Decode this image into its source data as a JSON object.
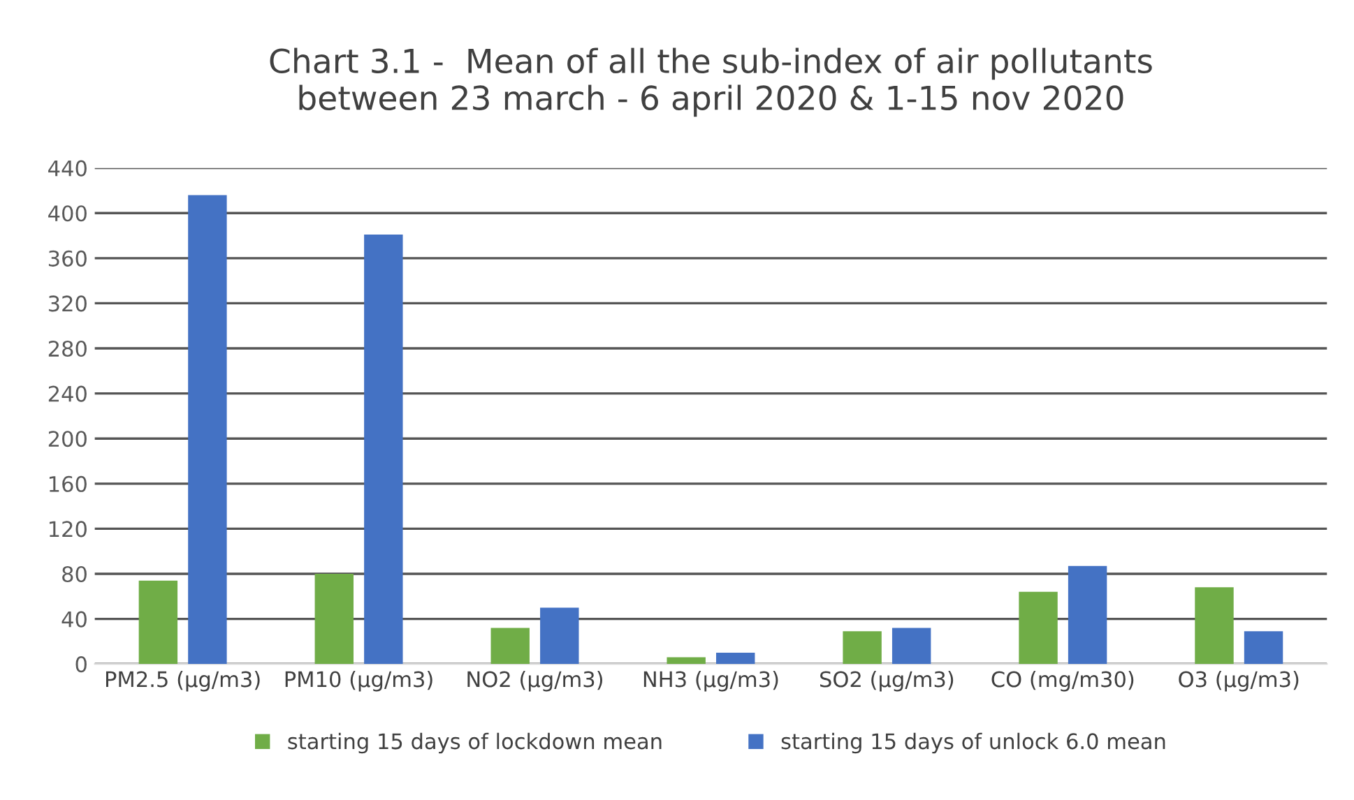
{
  "chart_data": {
    "type": "bar",
    "title": "Chart 3.1 -  Mean of all the sub-index of air pollutants\nbetween 23 march - 6 april 2020 & 1-15 nov 2020",
    "categories": [
      "PM2.5 (µg/m3)",
      "PM10 (µg/m3)",
      "NO2 (µg/m3)",
      "NH3 (µg/m3)",
      "SO2 (µg/m3)",
      "CO (mg/m30)",
      "O3 (µg/m3)"
    ],
    "series": [
      {
        "name": "starting 15 days of lockdown mean",
        "color": "#70ad47",
        "values": [
          74,
          80,
          32,
          6,
          29,
          64,
          68
        ]
      },
      {
        "name": "starting 15 days of unlock 6.0 mean",
        "color": "#4472c4",
        "values": [
          416,
          381,
          50,
          10,
          32,
          87,
          29
        ]
      }
    ],
    "ylim": [
      0,
      440
    ],
    "yticks": [
      0,
      40,
      80,
      120,
      160,
      200,
      240,
      280,
      320,
      360,
      400,
      440
    ],
    "grid": "y",
    "legend": "bottom"
  }
}
